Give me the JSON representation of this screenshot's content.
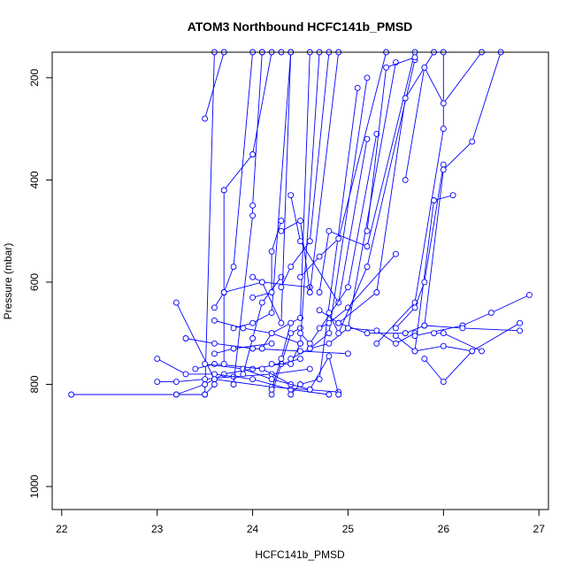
{
  "chart_data": {
    "type": "line",
    "title": "ATOM3 Northbound HCFC141b_PMSD",
    "xlabel": "HCFC141b_PMSD",
    "ylabel": "Pressure (mbar)",
    "xlim": [
      21.9,
      27.1
    ],
    "ylim": [
      1045,
      150
    ],
    "y_reversed": true,
    "x_ticks": [
      22,
      23,
      24,
      25,
      26,
      27
    ],
    "y_ticks": [
      200,
      400,
      600,
      800,
      1000
    ],
    "grid": false,
    "series_color": "#0000ff",
    "marker": "open-circle",
    "series": [
      {
        "x": [
          22.1,
          23.5,
          23.6
        ],
        "y": [
          820,
          820,
          150
        ]
      },
      {
        "x": [
          23.2,
          23.5,
          23.6,
          23.7,
          24.0,
          24.3,
          24.5
        ],
        "y": [
          820,
          800,
          790,
          780,
          770,
          760,
          750
        ]
      },
      {
        "x": [
          23.0,
          23.2,
          23.5,
          23.8,
          24.2,
          24.6
        ],
        "y": [
          795,
          795,
          790,
          785,
          780,
          770
        ]
      },
      {
        "x": [
          23.0,
          23.3,
          23.6,
          24.0,
          24.4,
          24.8
        ],
        "y": [
          750,
          780,
          780,
          790,
          810,
          820
        ]
      },
      {
        "x": [
          23.2,
          23.6,
          24.2,
          24.9
        ],
        "y": [
          640,
          790,
          805,
          815
        ]
      },
      {
        "x": [
          23.2,
          23.5,
          23.6
        ],
        "y": [
          820,
          820,
          800
        ]
      },
      {
        "x": [
          23.3,
          23.6,
          24.0,
          24.5,
          25.0
        ],
        "y": [
          710,
          720,
          730,
          735,
          740
        ]
      },
      {
        "x": [
          23.4,
          23.6,
          24.1,
          24.4
        ],
        "y": [
          770,
          760,
          770,
          800
        ]
      },
      {
        "x": [
          23.5,
          23.9,
          24.2,
          24.6
        ],
        "y": [
          760,
          770,
          790,
          810
        ]
      },
      {
        "x": [
          23.5,
          23.7,
          24.1,
          24.3
        ],
        "y": [
          280,
          150,
          150,
          150
        ]
      },
      {
        "x": [
          23.6,
          23.8,
          24.2
        ],
        "y": [
          740,
          730,
          720
        ]
      },
      {
        "x": [
          23.6,
          23.9,
          24.2,
          24.5
        ],
        "y": [
          675,
          690,
          700,
          720
        ]
      },
      {
        "x": [
          23.6,
          23.7,
          24.1,
          24.6
        ],
        "y": [
          650,
          620,
          600,
          610
        ]
      },
      {
        "x": [
          23.7,
          23.7,
          24.0,
          24.2
        ],
        "y": [
          760,
          420,
          350,
          150
        ]
      },
      {
        "x": [
          23.7,
          23.8,
          24.0
        ],
        "y": [
          620,
          570,
          150
        ]
      },
      {
        "x": [
          23.8,
          24.0,
          24.0,
          24.1
        ],
        "y": [
          800,
          470,
          450,
          150
        ]
      },
      {
        "x": [
          23.8,
          24.0,
          24.2,
          24.4
        ],
        "y": [
          690,
          680,
          660,
          150
        ]
      },
      {
        "x": [
          23.9,
          24.0,
          24.1,
          24.3
        ],
        "y": [
          780,
          710,
          640,
          590
        ]
      },
      {
        "x": [
          24.0,
          24.1,
          24.3,
          24.4
        ],
        "y": [
          590,
          600,
          680,
          150
        ]
      },
      {
        "x": [
          24.0,
          24.2,
          24.2,
          24.3
        ],
        "y": [
          630,
          620,
          540,
          480
        ]
      },
      {
        "x": [
          24.1,
          24.2,
          24.5,
          24.6
        ],
        "y": [
          730,
          700,
          670,
          150
        ]
      },
      {
        "x": [
          24.2,
          24.3,
          24.4,
          24.5
        ],
        "y": [
          820,
          760,
          700,
          690
        ]
      },
      {
        "x": [
          24.2,
          24.3,
          24.4
        ],
        "y": [
          810,
          750,
          680
        ]
      },
      {
        "x": [
          24.2,
          24.4,
          24.5,
          24.7
        ],
        "y": [
          760,
          760,
          720,
          150
        ]
      },
      {
        "x": [
          24.3,
          24.4,
          24.6,
          24.8
        ],
        "y": [
          610,
          570,
          520,
          150
        ]
      },
      {
        "x": [
          24.3,
          24.5,
          24.6,
          24.9
        ],
        "y": [
          500,
          480,
          620,
          150
        ]
      },
      {
        "x": [
          24.4,
          24.5,
          24.7,
          25.1
        ],
        "y": [
          820,
          800,
          790,
          220
        ]
      },
      {
        "x": [
          24.4,
          24.6,
          24.8,
          25.2
        ],
        "y": [
          750,
          730,
          700,
          200
        ]
      },
      {
        "x": [
          24.4,
          24.5,
          24.9,
          25.2
        ],
        "y": [
          430,
          520,
          640,
          320
        ]
      },
      {
        "x": [
          24.5,
          24.6,
          25.0,
          25.3
        ],
        "y": [
          700,
          720,
          610,
          310
        ]
      },
      {
        "x": [
          24.5,
          24.7,
          24.9,
          25.4
        ],
        "y": [
          590,
          550,
          515,
          150
        ]
      },
      {
        "x": [
          24.6,
          24.8,
          25.0,
          25.5
        ],
        "y": [
          730,
          720,
          690,
          170
        ]
      },
      {
        "x": [
          24.6,
          24.8,
          24.9
        ],
        "y": [
          810,
          745,
          820
        ]
      },
      {
        "x": [
          24.7,
          24.8,
          25.0,
          25.5
        ],
        "y": [
          690,
          680,
          650,
          545
        ]
      },
      {
        "x": [
          24.7,
          24.9,
          25.2,
          25.6
        ],
        "y": [
          655,
          680,
          700,
          700
        ]
      },
      {
        "x": [
          24.7,
          24.8,
          25.2,
          25.7
        ],
        "y": [
          620,
          500,
          530,
          150
        ]
      },
      {
        "x": [
          24.8,
          24.9,
          25.2,
          25.7
        ],
        "y": [
          660,
          700,
          570,
          165
        ]
      },
      {
        "x": [
          24.9,
          25.3,
          25.6,
          25.9
        ],
        "y": [
          680,
          620,
          240,
          150
        ]
      },
      {
        "x": [
          25.0,
          25.3,
          25.5,
          25.7
        ],
        "y": [
          690,
          695,
          720,
          700
        ]
      },
      {
        "x": [
          25.2,
          25.4,
          25.7
        ],
        "y": [
          500,
          180,
          160
        ]
      },
      {
        "x": [
          25.3,
          25.7,
          26.0,
          26.0
        ],
        "y": [
          720,
          640,
          300,
          150
        ]
      },
      {
        "x": [
          25.5,
          25.7,
          25.9,
          26.1
        ],
        "y": [
          705,
          735,
          440,
          430
        ]
      },
      {
        "x": [
          25.5,
          25.7,
          25.8,
          26.0
        ],
        "y": [
          690,
          650,
          600,
          370
        ]
      },
      {
        "x": [
          25.6,
          25.8,
          26.0,
          26.3,
          26.6
        ],
        "y": [
          700,
          685,
          380,
          325,
          150
        ]
      },
      {
        "x": [
          25.6,
          25.8,
          26.0,
          26.4
        ],
        "y": [
          400,
          180,
          250,
          150
        ]
      },
      {
        "x": [
          25.7,
          26.0,
          26.3,
          26.8
        ],
        "y": [
          735,
          725,
          735,
          680
        ]
      },
      {
        "x": [
          25.7,
          26.2,
          26.5,
          26.9
        ],
        "y": [
          705,
          685,
          660,
          625
        ]
      },
      {
        "x": [
          25.8,
          26.2,
          26.8
        ],
        "y": [
          685,
          690,
          695
        ]
      },
      {
        "x": [
          25.9,
          26.0,
          26.4
        ],
        "y": [
          700,
          700,
          735
        ]
      },
      {
        "x": [
          25.8,
          26.0,
          26.3
        ],
        "y": [
          750,
          795,
          735
        ]
      }
    ]
  }
}
